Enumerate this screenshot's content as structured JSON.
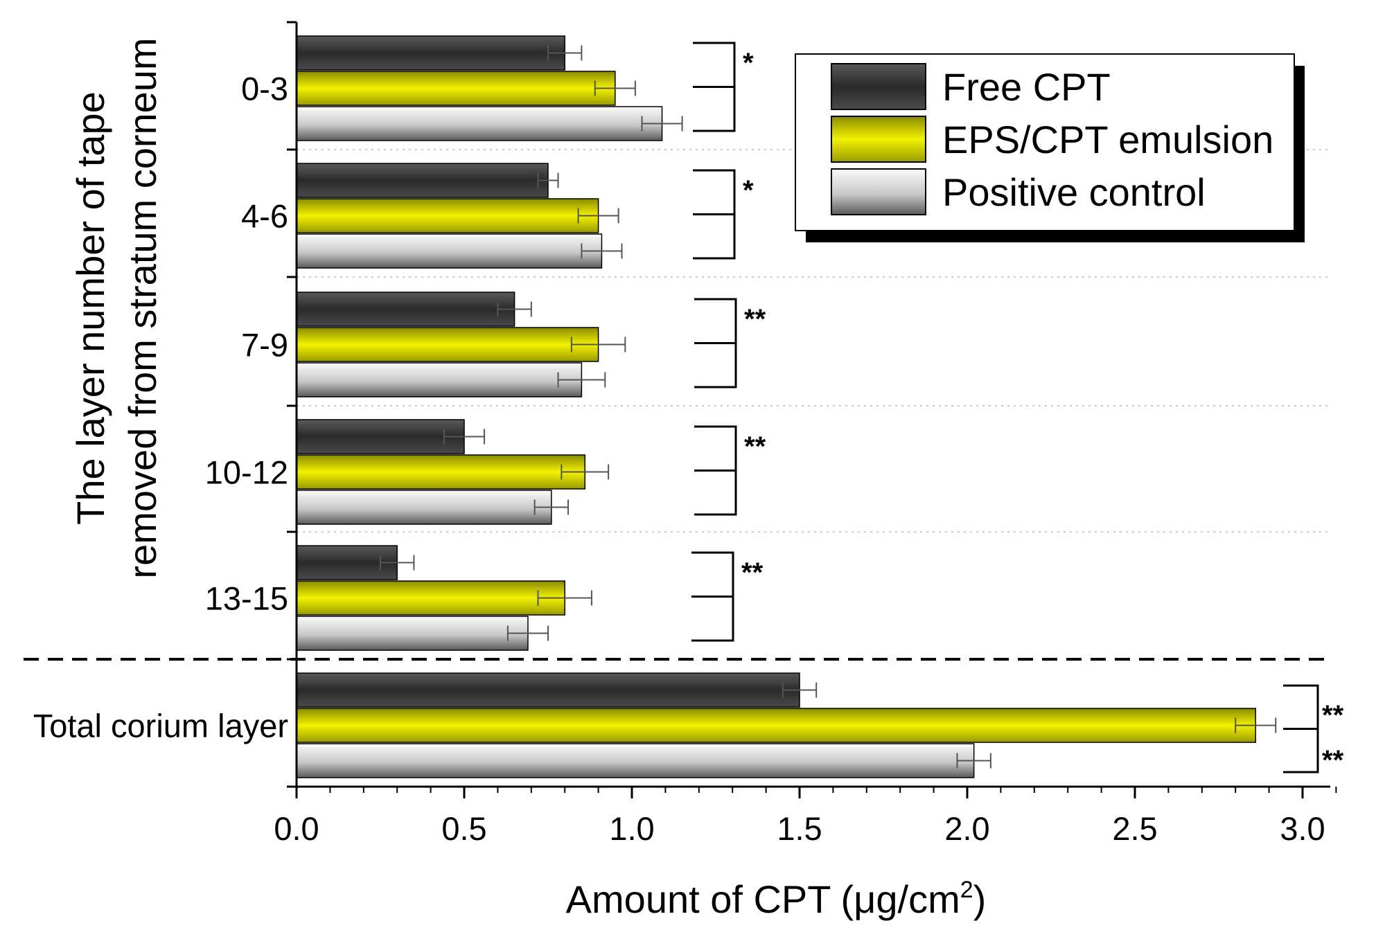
{
  "chart_data": {
    "type": "bar",
    "orientation": "horizontal",
    "title": "",
    "xlabel": "Amount of CPT",
    "xlabel_unit_prefix": "(μg/cm",
    "xlabel_unit_superscript": "2",
    "xlabel_unit_suffix": ")",
    "ylabel_line1": "The layer number of tape",
    "ylabel_line2": "removed from stratum corneum",
    "xlim": [
      0,
      3.1
    ],
    "xticks": [
      "0.0",
      "0.5",
      "1.0",
      "1.5",
      "2.0",
      "2.5",
      "3.0"
    ],
    "categories": [
      "0-3",
      "4-6",
      "7-9",
      "10-12",
      "13-15",
      "Total corium layer"
    ],
    "series": [
      {
        "name": "Free CPT",
        "color": "#3a3a3a",
        "values": [
          0.8,
          0.75,
          0.65,
          0.5,
          0.3,
          1.5
        ],
        "errors": [
          0.05,
          0.03,
          0.05,
          0.06,
          0.05,
          0.05
        ]
      },
      {
        "name": "EPS/CPT emulsion",
        "color": "#e6e600",
        "values": [
          0.95,
          0.9,
          0.9,
          0.86,
          0.8,
          2.86
        ],
        "errors": [
          0.06,
          0.06,
          0.08,
          0.07,
          0.08,
          0.06
        ]
      },
      {
        "name": "Positive control",
        "color": "#d0d0d0",
        "values": [
          1.09,
          0.91,
          0.85,
          0.76,
          0.69,
          2.02
        ],
        "errors": [
          0.06,
          0.06,
          0.07,
          0.05,
          0.06,
          0.05
        ]
      }
    ],
    "significance": [
      "*",
      "*",
      "**",
      "**",
      "**",
      "**",
      "**"
    ],
    "legend": {
      "position": "top-right",
      "entries": [
        "Free CPT",
        "EPS/CPT emulsion",
        "Positive control"
      ]
    }
  }
}
